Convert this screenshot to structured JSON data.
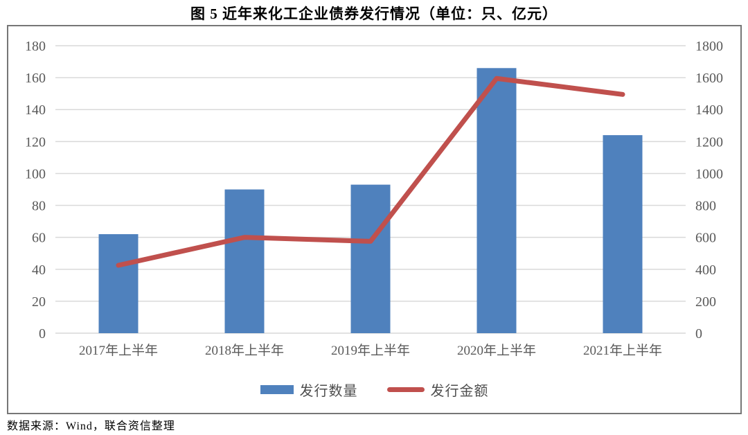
{
  "title": "图 5  近年来化工企业债券发行情况（单位：只、亿元）",
  "source": "数据来源：Wind，联合资信整理",
  "colors": {
    "bar": "#4F81BD",
    "line": "#C0504D",
    "grid": "#D9D9D9",
    "axis_text": "#595959",
    "frame_border": "#767676"
  },
  "chart_data": {
    "type": "bar-line-combo",
    "title": "图 5  近年来化工企业债券发行情况（单位：只、亿元）",
    "units": "只、亿元",
    "categories": [
      "2017年上半年",
      "2018年上半年",
      "2019年上半年",
      "2020年上半年",
      "2021年上半年"
    ],
    "series": [
      {
        "name": "发行数量",
        "type": "bar",
        "y_axis": "left",
        "color": "#4F81BD",
        "values": [
          62,
          90,
          93,
          166,
          124
        ]
      },
      {
        "name": "发行金额",
        "type": "line",
        "y_axis": "right",
        "color": "#C0504D",
        "values": [
          425,
          600,
          575,
          1595,
          1495
        ]
      }
    ],
    "left_axis": {
      "min": 0,
      "max": 180,
      "tick_step": 20,
      "ticks": [
        0,
        20,
        40,
        60,
        80,
        100,
        120,
        140,
        160,
        180
      ]
    },
    "right_axis": {
      "min": 0,
      "max": 1800,
      "tick_step": 200,
      "ticks": [
        0,
        200,
        400,
        600,
        800,
        1000,
        1200,
        1400,
        1600,
        1800
      ]
    },
    "grid": true,
    "legend_position": "bottom"
  }
}
